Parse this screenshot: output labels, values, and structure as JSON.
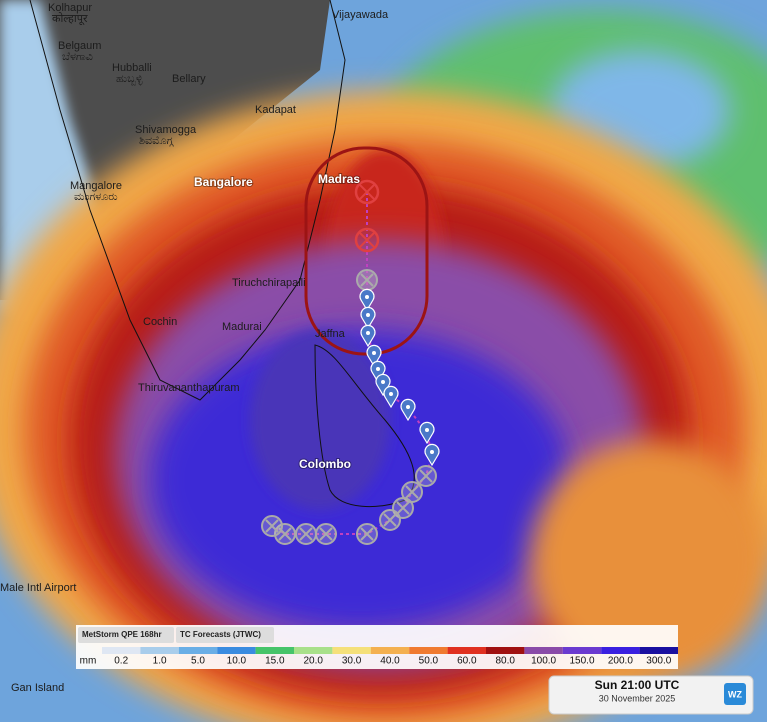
{
  "map": {
    "places": [
      {
        "label": "Kolhapur",
        "native": "कोल्हापूर"
      },
      {
        "label": "Belgaum",
        "native": "ಬೆಳಗಾವಿ"
      },
      {
        "label": "Hubballi",
        "native": "ಹುಬ್ಬಳ್ಳಿ"
      },
      {
        "label": "Bellary"
      },
      {
        "label": "Vijayawada"
      },
      {
        "label": "Kadapat"
      },
      {
        "label": "Shivamogga",
        "native": "ಶಿವಮೊಗ್ಗ"
      },
      {
        "label": "Mangalore",
        "native": "ಮಂಗಳೂರು"
      },
      {
        "label": "Bangalore"
      },
      {
        "label": "Madras"
      },
      {
        "label": "Tiruchchirapalli"
      },
      {
        "label": "Cochin"
      },
      {
        "label": "Madurai"
      },
      {
        "label": "Jaffna"
      },
      {
        "label": "Thiruvananthapuram"
      },
      {
        "label": "Colombo"
      },
      {
        "label": "Male Intl Airport"
      },
      {
        "label": "Gan Island"
      }
    ]
  },
  "legend": {
    "tabs": [
      "MetStorm QPE 168hr",
      "TC Forecasts (JTWC)"
    ],
    "unit": "mm",
    "levels": [
      {
        "label": "0.2",
        "color": "#dfe7f3"
      },
      {
        "label": "1.0",
        "color": "#a9cdeb"
      },
      {
        "label": "5.0",
        "color": "#6aaee6"
      },
      {
        "label": "10.0",
        "color": "#3a8be0"
      },
      {
        "label": "15.0",
        "color": "#46c46a"
      },
      {
        "label": "20.0",
        "color": "#a8e08a"
      },
      {
        "label": "30.0",
        "color": "#f5e07a"
      },
      {
        "label": "40.0",
        "color": "#f4b050"
      },
      {
        "label": "50.0",
        "color": "#f07a30"
      },
      {
        "label": "60.0",
        "color": "#e03020"
      },
      {
        "label": "80.0",
        "color": "#a01010"
      },
      {
        "label": "100.0",
        "color": "#8a4aa8"
      },
      {
        "label": "150.0",
        "color": "#6a3ad0"
      },
      {
        "label": "200.0",
        "color": "#3a20e0"
      },
      {
        "label": "300.0",
        "color": "#1a10a0"
      }
    ]
  },
  "timestamp": {
    "time": "Sun 21:00 UTC",
    "date": "30 November 2025",
    "logo": "WZ"
  }
}
